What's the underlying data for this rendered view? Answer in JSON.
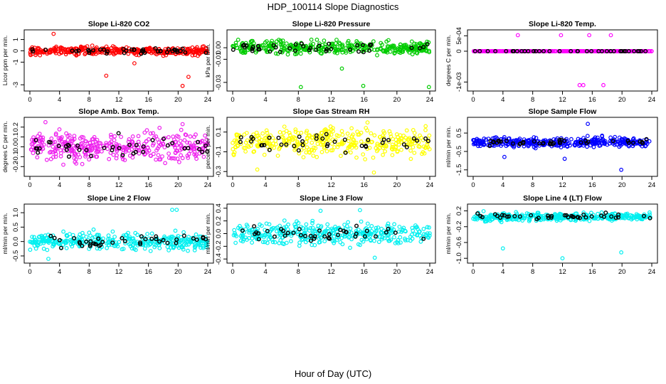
{
  "page": {
    "title": "HDP_100114  Slope Diagnostics",
    "xlabel": "Hour of Day (UTC)"
  },
  "colors": {
    "highlight": "#000000",
    "axis": "#000000"
  },
  "chart_data": [
    {
      "type": "scatter",
      "title": "Slope Li-820 CO2",
      "ylabel": "Licor ppm per min.",
      "color": "#ff0000",
      "xlim": [
        0,
        24
      ],
      "ylim": [
        -3.3,
        1.6
      ],
      "yticks": [
        -3,
        -1,
        0,
        1
      ],
      "ytick_labels": [
        "-3",
        "-1",
        "0",
        "1"
      ],
      "xticks": [
        0,
        4,
        8,
        12,
        16,
        20,
        24
      ],
      "xtick_labels": [
        "0",
        "4",
        "8",
        "12",
        "16",
        "20",
        "24"
      ],
      "grid": false,
      "center": 0.0,
      "spread": 0.25,
      "outliers": [
        [
          3.2,
          1.5
        ],
        [
          10.3,
          -2.2
        ],
        [
          20.6,
          -3.1
        ],
        [
          21.4,
          -2.3
        ],
        [
          14.1,
          -1.1
        ]
      ]
    },
    {
      "type": "scatter",
      "title": "Slope Li-820 Pressure",
      "ylabel": "kPa per min.",
      "color": "#00cc00",
      "xlim": [
        0,
        24
      ],
      "ylim": [
        -0.035,
        0.013
      ],
      "yticks": [
        -0.03,
        -0.01,
        0.0
      ],
      "ytick_labels": [
        "-0.03",
        "-0.01",
        "0.00"
      ],
      "xticks": [
        0,
        4,
        8,
        12,
        16,
        20,
        24
      ],
      "xtick_labels": [
        "0",
        "4",
        "8",
        "12",
        "16",
        "20",
        "24"
      ],
      "grid": false,
      "center": 0.0,
      "spread": 0.004,
      "outliers": [
        [
          8.3,
          -0.034
        ],
        [
          15.9,
          -0.033
        ],
        [
          23.9,
          -0.034
        ],
        [
          13.3,
          -0.018
        ]
      ]
    },
    {
      "type": "scatter",
      "title": "Slope Li-820 Temp.",
      "ylabel": "degrees C per min.",
      "color": "#ff00ff",
      "xlim": [
        0,
        24
      ],
      "ylim": [
        -0.0012,
        0.0006
      ],
      "yticks": [
        -0.001,
        0.0,
        0.0005
      ],
      "ytick_labels": [
        "-1e-03",
        "0",
        "5e-04"
      ],
      "xticks": [
        0,
        4,
        8,
        12,
        16,
        20,
        24
      ],
      "xtick_labels": [
        "0",
        "4",
        "8",
        "12",
        "16",
        "20",
        "24"
      ],
      "grid": false,
      "center": 0.0,
      "spread": 0.0,
      "outliers": [
        [
          6.0,
          0.00052
        ],
        [
          11.8,
          0.00052
        ],
        [
          15.6,
          0.00052
        ],
        [
          18.5,
          0.00052
        ],
        [
          14.3,
          -0.0011
        ],
        [
          17.5,
          -0.0011
        ],
        [
          14.8,
          -0.0011
        ]
      ]
    },
    {
      "type": "scatter",
      "title": "Slope Amb. Box Temp.",
      "ylabel": "degrees C per min.",
      "color": "#ee22ee",
      "xlim": [
        0,
        24
      ],
      "ylim": [
        -0.27,
        0.27
      ],
      "yticks": [
        -0.2,
        -0.1,
        0.0,
        0.1,
        0.2
      ],
      "ytick_labels": [
        "-0.2",
        "-0.1",
        "0.0",
        "0.1",
        "0.2"
      ],
      "xticks": [
        0,
        4,
        8,
        12,
        16,
        20,
        24
      ],
      "xtick_labels": [
        "0",
        "4",
        "8",
        "12",
        "16",
        "20",
        "24"
      ],
      "grid": false,
      "center": 0.0,
      "spread": 0.1,
      "outliers": [
        [
          2.1,
          0.25
        ],
        [
          20.6,
          0.23
        ]
      ]
    },
    {
      "type": "scatter",
      "title": "Slope Gas Stream RH",
      "ylabel": "percent per min.",
      "color": "#ffff00",
      "xlim": [
        0,
        24
      ],
      "ylim": [
        -0.32,
        0.22
      ],
      "yticks": [
        -0.3,
        -0.1,
        0.1
      ],
      "ytick_labels": [
        "-0.3",
        "-0.1",
        "0.1"
      ],
      "xticks": [
        0,
        4,
        8,
        12,
        16,
        20,
        24
      ],
      "xtick_labels": [
        "0",
        "4",
        "8",
        "12",
        "16",
        "20",
        "24"
      ],
      "grid": false,
      "center": 0.0,
      "spread": 0.1,
      "outliers": [
        [
          17.2,
          -0.31
        ],
        [
          3.0,
          -0.28
        ]
      ]
    },
    {
      "type": "scatter",
      "title": "Slope Sample Flow",
      "ylabel": "ml/min per min.",
      "color": "#0000ff",
      "xlim": [
        0,
        24
      ],
      "ylim": [
        -1.7,
        1.2
      ],
      "yticks": [
        -1.5,
        -0.5,
        0.5
      ],
      "ytick_labels": [
        "-1.5",
        "-0.5",
        "0.5"
      ],
      "xticks": [
        0,
        4,
        8,
        12,
        16,
        20,
        24
      ],
      "xtick_labels": [
        "0",
        "4",
        "8",
        "12",
        "16",
        "20",
        "24"
      ],
      "grid": false,
      "center": 0.0,
      "spread": 0.18,
      "outliers": [
        [
          4.2,
          -0.8
        ],
        [
          12.3,
          -0.9
        ],
        [
          19.9,
          -1.5
        ],
        [
          15.4,
          1.0
        ]
      ]
    },
    {
      "type": "scatter",
      "title": "Slope Line 2 Flow",
      "ylabel": "ml/min per min.",
      "color": "#00f0f0",
      "xlim": [
        0,
        24
      ],
      "ylim": [
        -0.65,
        1.2
      ],
      "yticks": [
        -0.5,
        0.0,
        0.5,
        1.0
      ],
      "ytick_labels": [
        "-0.5",
        "0.0",
        "0.5",
        "1.0"
      ],
      "xticks": [
        0,
        4,
        8,
        12,
        16,
        20,
        24
      ],
      "xtick_labels": [
        "0",
        "4",
        "8",
        "12",
        "16",
        "20",
        "24"
      ],
      "grid": false,
      "center": 0.0,
      "spread": 0.2,
      "outliers": [
        [
          19.2,
          1.1
        ],
        [
          19.8,
          1.1
        ],
        [
          2.5,
          -0.6
        ]
      ]
    },
    {
      "type": "scatter",
      "title": "Slope Line 3 Flow",
      "ylabel": "ml/min per min.",
      "color": "#00f0f0",
      "xlim": [
        0,
        24
      ],
      "ylim": [
        -0.42,
        0.42
      ],
      "yticks": [
        -0.4,
        -0.2,
        0.0,
        0.2,
        0.4
      ],
      "ytick_labels": [
        "-0.4",
        "-0.2",
        "0.0",
        "0.2",
        "0.4"
      ],
      "xticks": [
        0,
        4,
        8,
        12,
        16,
        20,
        24
      ],
      "xtick_labels": [
        "0",
        "4",
        "8",
        "12",
        "16",
        "20",
        "24"
      ],
      "grid": false,
      "center": 0.0,
      "spread": 0.12,
      "outliers": [
        [
          10.7,
          0.36
        ],
        [
          15.5,
          0.37
        ],
        [
          17.3,
          -0.38
        ]
      ]
    },
    {
      "type": "scatter",
      "title": "Slope Line 4 (LT) Flow",
      "ylabel": "ml/min per min.",
      "color": "#00f0f0",
      "xlim": [
        0,
        24
      ],
      "ylim": [
        -1.05,
        0.3
      ],
      "yticks": [
        -1.0,
        -0.6,
        -0.2,
        0.2
      ],
      "ytick_labels": [
        "-1.0",
        "-0.6",
        "-0.2",
        "0.2"
      ],
      "xticks": [
        0,
        4,
        8,
        12,
        16,
        20,
        24
      ],
      "xtick_labels": [
        "0",
        "4",
        "8",
        "12",
        "16",
        "20",
        "24"
      ],
      "grid": false,
      "center": 0.05,
      "spread": 0.07,
      "outliers": [
        [
          4.0,
          -0.75
        ],
        [
          12.0,
          -1.0
        ],
        [
          19.9,
          -0.85
        ]
      ]
    }
  ]
}
